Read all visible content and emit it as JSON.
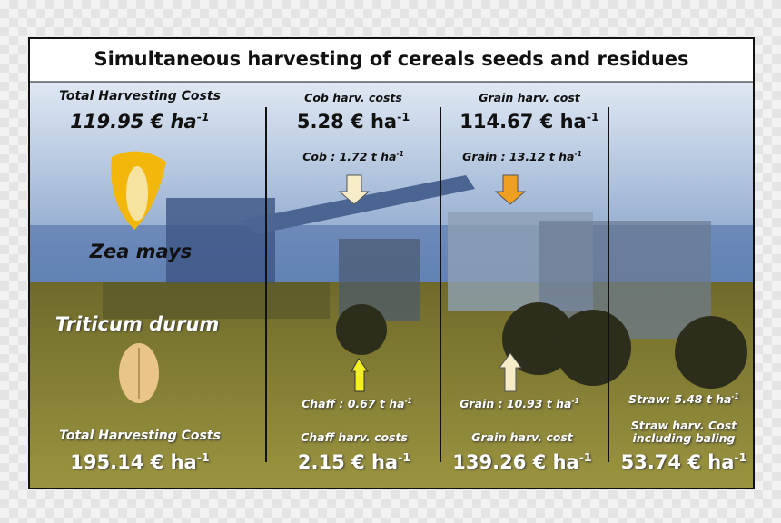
{
  "title": "Simultaneous harvesting of cereals seeds and residues",
  "top": {
    "species": "Zea mays",
    "total_label": "Total Harvesting Costs",
    "total_value": {
      "main": "119.95 € ha",
      "sup": "-1"
    },
    "cob": {
      "label": "Cob harv. costs",
      "cost": {
        "main": "5.28 € ha",
        "sup": "-1"
      },
      "yield": {
        "main": "Cob : 1.72 t ha",
        "sup": "-1"
      }
    },
    "grain": {
      "label": "Grain harv. cost",
      "cost": {
        "main": "114.67 € ha",
        "sup": "-1"
      },
      "yield": {
        "main": "Grain : 13.12 t ha",
        "sup": "-1"
      }
    }
  },
  "bottom": {
    "species": "Triticum durum",
    "total_label": "Total Harvesting Costs",
    "total_value": {
      "main": "195.14 € ha",
      "sup": "-1"
    },
    "chaff": {
      "label": "Chaff harv. costs",
      "cost": {
        "main": "2.15 € ha",
        "sup": "-1"
      },
      "yield": {
        "main": "Chaff : 0.67 t ha",
        "sup": "-1"
      }
    },
    "grain": {
      "label": "Grain harv. cost",
      "cost": {
        "main": "139.26 € ha",
        "sup": "-1"
      },
      "yield": {
        "main": "Grain : 10.93 t ha",
        "sup": "-1"
      }
    },
    "straw": {
      "label": [
        "Straw harv. Cost",
        "including baling"
      ],
      "cost": {
        "main": "53.74 € ha",
        "sup": "-1"
      },
      "yield": {
        "main": "Straw: 5.48 t ha",
        "sup": "-1"
      }
    }
  }
}
